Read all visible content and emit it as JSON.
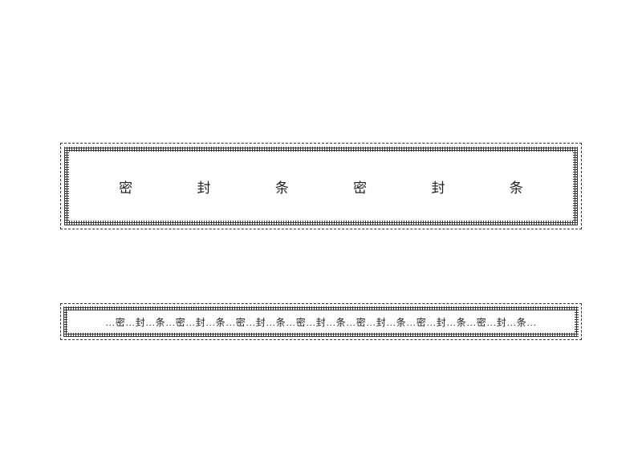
{
  "strip1": {
    "chars": [
      "密",
      "封",
      "条",
      "密",
      "封",
      "条"
    ],
    "border_color": "#333333",
    "bg_color": "#ffffff",
    "font_size": 17
  },
  "strip2": {
    "text": "…密…封…条…密…封…条…密…封…条…密…封…条…密…封…条…密…封…条…密…封…条…",
    "border_color": "#333333",
    "bg_color": "#ffffff",
    "font_size": 12
  }
}
